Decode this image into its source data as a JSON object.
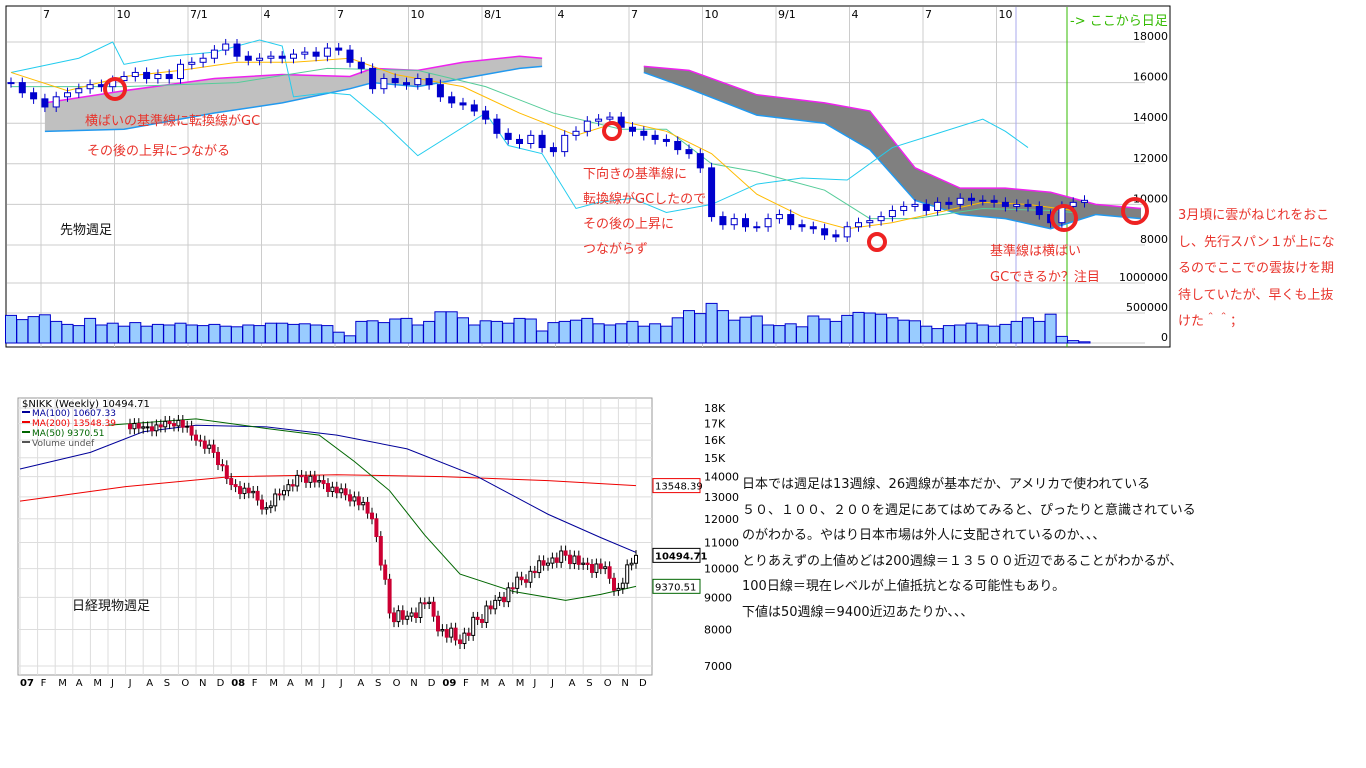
{
  "top_chart": {
    "x_ticks": [
      "7",
      "10",
      "7/1",
      "4",
      "7",
      "10",
      "8/1",
      "4",
      "7",
      "10",
      "9/1",
      "4",
      "7",
      "10"
    ],
    "y_ticks": [
      18000,
      16000,
      14000,
      12000,
      10000,
      8000
    ],
    "vol_ticks": [
      "1000000",
      "500000",
      "0"
    ],
    "daily_marker": "-> ここから日足",
    "label": "先物週足",
    "notes": {
      "a1": "横ばいの基準線に転換線がGC",
      "a2": "その後の上昇につながる",
      "b1": "下向きの基準線に",
      "b2": "転換線がGCしたので",
      "b3": "その後の上昇に",
      "b4": "つながらず",
      "c1": "基準線は横ばい",
      "c2": "GCできるか？注目"
    },
    "side_note": [
      "3月頃に雲がねじれをおこ",
      "し、先行スパン１が上にな",
      "るのでここでの雲抜けを期",
      "待していたが、早くも上抜",
      "けた＾＾；"
    ],
    "colors": {
      "candle": "#0000cc",
      "tenkan": "#ffbb00",
      "kijun": "#55cc99",
      "chikou": "#22ccee",
      "spanA": "#ee22ee",
      "spanB": "#2299ee",
      "cloud_light": "#c0c0c0",
      "cloud_dark": "#808080",
      "volume": "#99ccff",
      "circle": "#ee2222",
      "daily": "#33bb00"
    }
  },
  "chart_data": [
    {
      "type": "candlestick",
      "ylim": [
        7000,
        19000
      ],
      "closes": [
        16000,
        15500,
        15200,
        14800,
        15300,
        15500,
        15700,
        15900,
        15800,
        16100,
        16300,
        16500,
        16200,
        16400,
        16200,
        16900,
        17000,
        17200,
        17600,
        17900,
        17300,
        17100,
        17200,
        17300,
        17200,
        17400,
        17500,
        17300,
        17700,
        17600,
        17000,
        16700,
        15700,
        16200,
        16000,
        15900,
        16200,
        15900,
        15300,
        15000,
        14900,
        14600,
        14200,
        13500,
        13200,
        13000,
        13400,
        12800,
        12600,
        13400,
        13600,
        14100,
        14200,
        14300,
        13800,
        13600,
        13400,
        13200,
        13100,
        12700,
        12500,
        11800,
        9400,
        9000,
        9300,
        8900,
        8900,
        9300,
        9500,
        9000,
        8900,
        8800,
        8500,
        8400,
        8900,
        9100,
        9200,
        9400,
        9700,
        9900,
        10000,
        9700,
        10100,
        10000,
        10300,
        10200,
        10200,
        10100,
        9900,
        10000,
        9900,
        9500,
        9100,
        9900,
        10100,
        10200
      ],
      "volume": [
        460000,
        390000,
        440000,
        470000,
        360000,
        310000,
        290000,
        410000,
        300000,
        330000,
        280000,
        340000,
        280000,
        310000,
        300000,
        330000,
        300000,
        290000,
        310000,
        280000,
        270000,
        300000,
        290000,
        330000,
        330000,
        310000,
        320000,
        300000,
        290000,
        180000,
        120000,
        360000,
        370000,
        340000,
        400000,
        410000,
        300000,
        360000,
        520000,
        520000,
        420000,
        300000,
        370000,
        360000,
        330000,
        410000,
        400000,
        200000,
        340000,
        360000,
        380000,
        410000,
        320000,
        300000,
        320000,
        360000,
        280000,
        320000,
        280000,
        420000,
        540000,
        490000,
        660000,
        540000,
        380000,
        430000,
        450000,
        300000,
        290000,
        320000,
        270000,
        450000,
        400000,
        360000,
        460000,
        510000,
        500000,
        480000,
        420000,
        380000,
        370000,
        280000,
        240000,
        290000,
        300000,
        330000,
        300000,
        280000,
        310000,
        360000,
        420000,
        360000,
        480000,
        110000,
        40000,
        20000
      ],
      "cloud_light": [
        [
          3,
          15000,
          13600
        ],
        [
          10,
          15600,
          13700
        ],
        [
          18,
          16200,
          14500
        ],
        [
          24,
          16400,
          15000
        ],
        [
          30,
          16300,
          15700
        ],
        [
          32,
          16700,
          16000
        ],
        [
          36,
          16600,
          15800
        ],
        [
          40,
          17000,
          16200
        ],
        [
          45,
          17300,
          16700
        ],
        [
          47,
          17200,
          16800
        ]
      ],
      "cloud_dark": [
        [
          56,
          16800,
          16500
        ],
        [
          60,
          16600,
          15700
        ],
        [
          66,
          15400,
          14400
        ],
        [
          72,
          15000,
          14000
        ],
        [
          76,
          14600,
          12700
        ],
        [
          80,
          11800,
          10200
        ],
        [
          84,
          10800,
          9500
        ],
        [
          88,
          10800,
          9300
        ],
        [
          92,
          10600,
          8800
        ],
        [
          96,
          10000,
          9500
        ],
        [
          100,
          9800,
          9300
        ]
      ],
      "tenkan": [
        [
          0,
          16500
        ],
        [
          5,
          15600
        ],
        [
          10,
          16300
        ],
        [
          15,
          16600
        ],
        [
          20,
          17000
        ],
        [
          25,
          17000
        ],
        [
          30,
          17200
        ],
        [
          34,
          16400
        ],
        [
          40,
          15800
        ],
        [
          45,
          14500
        ],
        [
          50,
          13400
        ],
        [
          54,
          14100
        ],
        [
          58,
          13600
        ],
        [
          62,
          12500
        ],
        [
          66,
          10500
        ],
        [
          70,
          9400
        ],
        [
          74,
          8800
        ],
        [
          78,
          9100
        ],
        [
          82,
          9600
        ],
        [
          86,
          10100
        ],
        [
          90,
          10000
        ],
        [
          94,
          9700
        ]
      ],
      "kijun": [
        [
          0,
          15800
        ],
        [
          10,
          15800
        ],
        [
          20,
          16000
        ],
        [
          28,
          16700
        ],
        [
          36,
          16600
        ],
        [
          42,
          15800
        ],
        [
          48,
          14500
        ],
        [
          54,
          13700
        ],
        [
          58,
          13700
        ],
        [
          62,
          12000
        ],
        [
          66,
          11600
        ],
        [
          72,
          10700
        ],
        [
          76,
          9300
        ],
        [
          80,
          9300
        ],
        [
          86,
          9800
        ],
        [
          92,
          9700
        ],
        [
          94,
          9600
        ]
      ],
      "chikou": [
        [
          0,
          16500
        ],
        [
          6,
          17200
        ],
        [
          9,
          18000
        ],
        [
          10,
          16900
        ],
        [
          14,
          17300
        ],
        [
          18,
          17500
        ],
        [
          22,
          18100
        ],
        [
          24,
          17800
        ],
        [
          25,
          15300
        ],
        [
          28,
          15500
        ],
        [
          30,
          15400
        ],
        [
          33,
          14000
        ],
        [
          36,
          12400
        ],
        [
          40,
          13800
        ],
        [
          42,
          14500
        ],
        [
          44,
          12900
        ],
        [
          47,
          12500
        ],
        [
          50,
          9800
        ],
        [
          52,
          10100
        ],
        [
          55,
          10300
        ],
        [
          58,
          9600
        ],
        [
          62,
          10000
        ],
        [
          66,
          11000
        ],
        [
          70,
          11300
        ],
        [
          74,
          11200
        ],
        [
          78,
          12800
        ],
        [
          82,
          13500
        ],
        [
          86,
          14200
        ],
        [
          88,
          13600
        ],
        [
          90,
          12800
        ]
      ]
    },
    {
      "type": "candlestick",
      "title": "$NIKK (Weekly) 10494.71",
      "yscale": "log",
      "ylim": [
        7000,
        18000
      ],
      "y_ticks": [
        "18K",
        "17K",
        "16K",
        "15K",
        "14000",
        "13000",
        "12000",
        "11000",
        "10000",
        "9000",
        "8000",
        "7000"
      ],
      "x_ticks": [
        "07",
        "F",
        "M",
        "A",
        "M",
        "J",
        "J",
        "A",
        "S",
        "O",
        "N",
        "D",
        "08",
        "F",
        "M",
        "A",
        "M",
        "J",
        "J",
        "A",
        "S",
        "O",
        "N",
        "D",
        "09",
        "F",
        "M",
        "A",
        "M",
        "J",
        "J",
        "A",
        "S",
        "O",
        "N",
        "D"
      ],
      "legend": [
        {
          "name": "MA(100) 10607.33",
          "color": "#000099"
        },
        {
          "name": "MA(200) 13548.39",
          "color": "#ee0000"
        },
        {
          "name": "MA(50) 9370.51",
          "color": "#006600"
        },
        {
          "name": "Volume undef",
          "color": "#555555"
        }
      ],
      "last_labels": {
        "price": "10494.71",
        "ma200": "13548.39",
        "ma50": "9370.51"
      },
      "monthly_closes": [
        [
          7,
          16800
        ],
        [
          8,
          16800
        ],
        [
          9,
          17200
        ],
        [
          10,
          16000
        ],
        [
          11,
          15300
        ],
        [
          12,
          13600
        ],
        [
          13,
          13200
        ],
        [
          14,
          12500
        ],
        [
          15,
          13300
        ],
        [
          16,
          14000
        ],
        [
          17,
          13800
        ],
        [
          18,
          13200
        ],
        [
          19,
          13000
        ],
        [
          20,
          12000
        ],
        [
          21,
          8500
        ],
        [
          22,
          8400
        ],
        [
          23,
          8800
        ],
        [
          24,
          8000
        ],
        [
          25,
          7600
        ],
        [
          26,
          8300
        ],
        [
          27,
          8900
        ],
        [
          28,
          9300
        ],
        [
          29,
          9900
        ],
        [
          30,
          10200
        ],
        [
          31,
          10500
        ],
        [
          32,
          10200
        ],
        [
          33,
          10000
        ],
        [
          34,
          9300
        ],
        [
          35,
          10494.71
        ]
      ],
      "ma200": [
        [
          0,
          12800
        ],
        [
          6,
          13500
        ],
        [
          12,
          14000
        ],
        [
          18,
          14100
        ],
        [
          24,
          14000
        ],
        [
          30,
          13800
        ],
        [
          35,
          13548.39
        ]
      ],
      "ma100": [
        [
          0,
          14400
        ],
        [
          4,
          15300
        ],
        [
          7,
          16500
        ],
        [
          10,
          16900
        ],
        [
          14,
          16800
        ],
        [
          18,
          16300
        ],
        [
          22,
          15500
        ],
        [
          26,
          14000
        ],
        [
          30,
          12200
        ],
        [
          33,
          11200
        ],
        [
          35,
          10607.33
        ]
      ],
      "ma50": [
        [
          5,
          16900
        ],
        [
          10,
          17300
        ],
        [
          14,
          16700
        ],
        [
          17,
          16300
        ],
        [
          19,
          14800
        ],
        [
          21,
          13300
        ],
        [
          23,
          11300
        ],
        [
          25,
          9800
        ],
        [
          28,
          9200
        ],
        [
          31,
          8900
        ],
        [
          33,
          9100
        ],
        [
          35,
          9370.51
        ]
      ],
      "label": "日経現物週足"
    }
  ],
  "commentary": [
    "日本では週足は13週線、26週線が基本だか、アメリカで使われている",
    "５０、１００、２００を週足にあてはめてみると、ぴったりと意識されている",
    "のがわかる。やはり日本市場は外人に支配されているのか、、、",
    "とりあえずの上値めどは200週線＝１３５００近辺であることがわかるが、",
    "100日線＝現在レベルが上値抵抗となる可能性もあり。",
    "下値は50週線＝9400近辺あたりか、、、"
  ]
}
